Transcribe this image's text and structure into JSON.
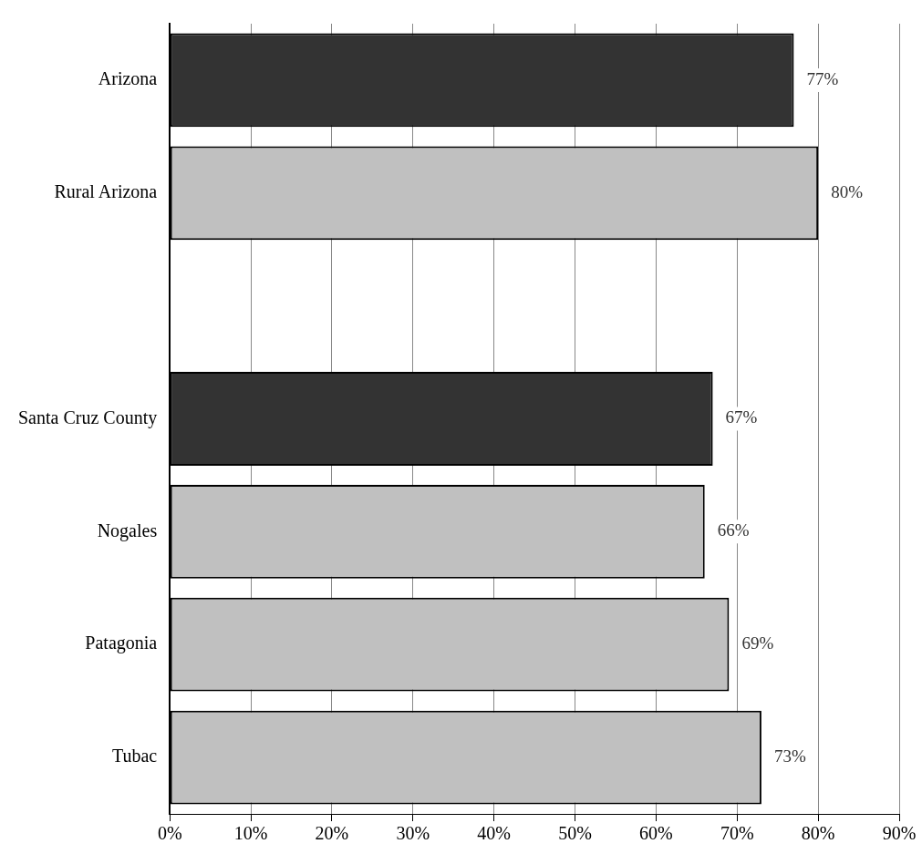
{
  "chart_data": {
    "type": "bar",
    "orientation": "horizontal",
    "categories": [
      "Arizona",
      "Rural Arizona",
      null,
      "Santa Cruz County",
      "Nogales",
      "Patagonia",
      "Tubac"
    ],
    "values": [
      77,
      80,
      null,
      67,
      66,
      69,
      73
    ],
    "colors": [
      "#333333",
      "#c0c0c0",
      "#c0c0c0",
      "#333333",
      "#c0c0c0",
      "#c0c0c0",
      "#c0c0c0"
    ],
    "value_labels": [
      "77%",
      "80%",
      null,
      "67%",
      "66%",
      "69%",
      "73%"
    ],
    "xlim": [
      0,
      90
    ],
    "xticks": [
      {
        "value": 0,
        "label": "0%"
      },
      {
        "value": 10,
        "label": "10%"
      },
      {
        "value": 20,
        "label": "20%"
      },
      {
        "value": 30,
        "label": "30%"
      },
      {
        "value": 40,
        "label": "40%"
      },
      {
        "value": 50,
        "label": "50%"
      },
      {
        "value": 60,
        "label": "60%"
      },
      {
        "value": 70,
        "label": "70%"
      },
      {
        "value": 80,
        "label": "80%"
      },
      {
        "value": 90,
        "label": "90%"
      }
    ],
    "grid": "x"
  }
}
